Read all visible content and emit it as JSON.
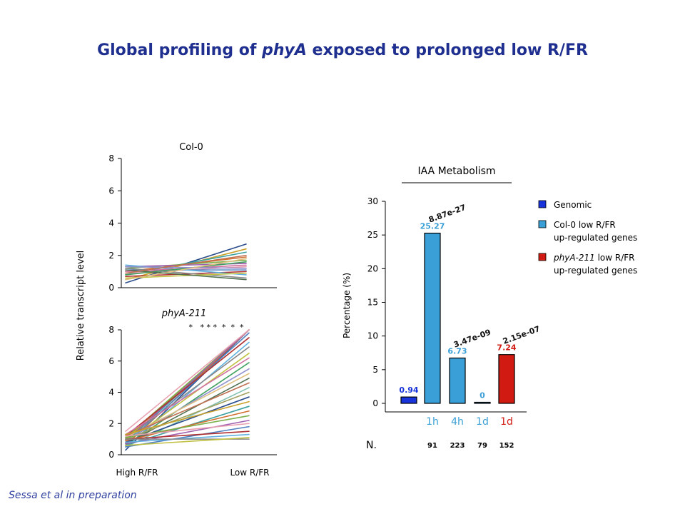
{
  "title": {
    "before": "Global profiling of ",
    "italic": "phyA",
    "after": " exposed to prolonged low R/FR"
  },
  "citation": "Sessa et al in preparation",
  "left_panel": {
    "ylabel": "Relative transcript level",
    "xticks": [
      "High R/FR",
      "Low R/FR"
    ],
    "stars": "*   * * *  *  *  *"
  },
  "legend": [
    {
      "label_lines": [
        "Genomic"
      ],
      "italic_first": false,
      "color": "#1733d9"
    },
    {
      "label_lines": [
        "Col-0 low R/FR",
        "up-regulated genes"
      ],
      "italic_first": false,
      "color": "#3a9fd6"
    },
    {
      "label_lines": [
        "phyA-211 low R/FR",
        "up-regulated genes"
      ],
      "italic_first": true,
      "italic_word": "phyA-211",
      "rest_first": " low R/FR",
      "color": "#d11a12"
    }
  ],
  "n_label": "N.",
  "chart_data": [
    {
      "type": "line",
      "title": "Col-0",
      "xlabel": "",
      "ylabel": "Relative transcript level",
      "x": [
        "High R/FR",
        "Low R/FR"
      ],
      "ylim": [
        0,
        8
      ],
      "yticks": [
        0,
        2,
        4,
        6,
        8
      ],
      "series": [
        {
          "values": [
            0.3,
            2.7
          ]
        },
        {
          "values": [
            0.5,
            2.4
          ]
        },
        {
          "values": [
            0.8,
            2.2
          ]
        },
        {
          "values": [
            1.0,
            1.9
          ]
        },
        {
          "values": [
            1.2,
            1.7
          ]
        },
        {
          "values": [
            1.3,
            1.5
          ]
        },
        {
          "values": [
            0.9,
            1.3
          ]
        },
        {
          "values": [
            1.1,
            1.1
          ]
        },
        {
          "values": [
            0.7,
            1.0
          ]
        },
        {
          "values": [
            1.4,
            0.8
          ]
        },
        {
          "values": [
            1.2,
            0.6
          ]
        },
        {
          "values": [
            0.6,
            0.9
          ]
        },
        {
          "values": [
            1.0,
            1.4
          ]
        },
        {
          "values": [
            0.8,
            1.6
          ]
        },
        {
          "values": [
            1.3,
            1.2
          ]
        },
        {
          "values": [
            0.5,
            1.8
          ]
        },
        {
          "values": [
            1.1,
            0.5
          ]
        },
        {
          "values": [
            0.9,
            2.0
          ]
        }
      ]
    },
    {
      "type": "line",
      "title": "phyA-211",
      "xlabel": "",
      "ylabel": "Relative transcript level",
      "x": [
        "High R/FR",
        "Low R/FR"
      ],
      "ylim": [
        0,
        8
      ],
      "yticks": [
        0,
        2,
        4,
        6,
        8
      ],
      "series": [
        {
          "values": [
            0.3,
            8.0
          ]
        },
        {
          "values": [
            1.0,
            8.0
          ]
        },
        {
          "values": [
            0.8,
            8.0
          ]
        },
        {
          "values": [
            0.6,
            8.0
          ]
        },
        {
          "values": [
            1.1,
            8.0
          ]
        },
        {
          "values": [
            0.9,
            8.0
          ]
        },
        {
          "values": [
            1.5,
            8.0
          ]
        },
        {
          "values": [
            0.7,
            7.8
          ]
        },
        {
          "values": [
            1.2,
            7.5
          ]
        },
        {
          "values": [
            0.5,
            7.2
          ]
        },
        {
          "values": [
            1.0,
            6.9
          ]
        },
        {
          "values": [
            0.8,
            6.5
          ]
        },
        {
          "values": [
            1.3,
            6.2
          ]
        },
        {
          "values": [
            0.6,
            5.9
          ]
        },
        {
          "values": [
            0.9,
            5.5
          ]
        },
        {
          "values": [
            1.1,
            5.2
          ]
        },
        {
          "values": [
            0.7,
            4.9
          ]
        },
        {
          "values": [
            1.2,
            4.6
          ]
        },
        {
          "values": [
            0.5,
            4.3
          ]
        },
        {
          "values": [
            1.0,
            4.0
          ]
        },
        {
          "values": [
            0.8,
            3.7
          ]
        },
        {
          "values": [
            1.3,
            3.4
          ]
        },
        {
          "values": [
            0.6,
            3.1
          ]
        },
        {
          "values": [
            0.9,
            2.8
          ]
        },
        {
          "values": [
            1.1,
            2.5
          ]
        },
        {
          "values": [
            0.7,
            2.2
          ]
        },
        {
          "values": [
            1.2,
            2.0
          ]
        },
        {
          "values": [
            0.5,
            1.8
          ]
        },
        {
          "values": [
            1.0,
            1.5
          ]
        },
        {
          "values": [
            0.8,
            1.3
          ]
        },
        {
          "values": [
            1.0,
            1.0
          ]
        },
        {
          "values": [
            0.6,
            1.1
          ]
        }
      ]
    },
    {
      "type": "bar",
      "title": "IAA Metabolism",
      "xlabel": "",
      "ylabel": "Percentage (%)",
      "ylim": [
        0,
        30
      ],
      "yticks": [
        0,
        5,
        10,
        15,
        20,
        25,
        30
      ],
      "categories": [
        "",
        "1h",
        "4h",
        "1d",
        "1d"
      ],
      "values": [
        0.94,
        25.27,
        6.73,
        0,
        7.24
      ],
      "value_labels": [
        "0.94",
        "25.27",
        "6.73",
        "0",
        "7.24"
      ],
      "pvalues": [
        "",
        "8.87e-27",
        "3.47e-09",
        "",
        "2.15e-07"
      ],
      "counts": [
        "",
        "91",
        "223",
        "79",
        "152"
      ],
      "colors": [
        "#1733d9",
        "#3a9fd6",
        "#3a9fd6",
        "#3a9fd6",
        "#d11a12"
      ],
      "label_colors": [
        "#1733d9",
        "#3a9fd6",
        "#3a9fd6",
        "#3a9fd6",
        "#d11a12"
      ]
    }
  ]
}
